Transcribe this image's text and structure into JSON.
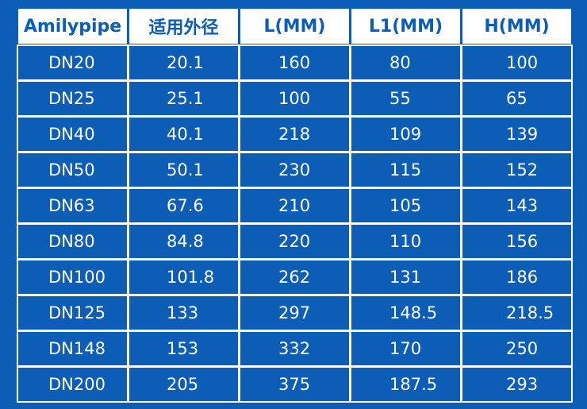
{
  "table": {
    "headers": [
      "Amilypipe",
      "适用外径",
      "L(MM)",
      "L1(MM)",
      "H(MM)"
    ],
    "rows": [
      [
        "DN20",
        "20.1",
        "160",
        "80",
        "100"
      ],
      [
        "DN25",
        "25.1",
        "100",
        "55",
        "65"
      ],
      [
        "DN40",
        "40.1",
        "218",
        "109",
        "139"
      ],
      [
        "DN50",
        "50.1",
        "230",
        "115",
        "152"
      ],
      [
        "DN63",
        "67.6",
        "210",
        "105",
        "143"
      ],
      [
        "DN80",
        "84.8",
        "220",
        "110",
        "156"
      ],
      [
        "DN100",
        "101.8",
        "262",
        "131",
        "186"
      ],
      [
        "DN125",
        "133",
        "297",
        "148.5",
        "218.5"
      ],
      [
        "DN148",
        "153",
        "332",
        "170",
        "250"
      ],
      [
        "DN200",
        "205",
        "375",
        "187.5",
        "293"
      ]
    ]
  },
  "colors": {
    "background": "#0b5db5",
    "header_background": "#ffffff",
    "header_text": "#0b5db5",
    "cell_text": "#ffffff",
    "grid_lines": "#ffffff"
  }
}
